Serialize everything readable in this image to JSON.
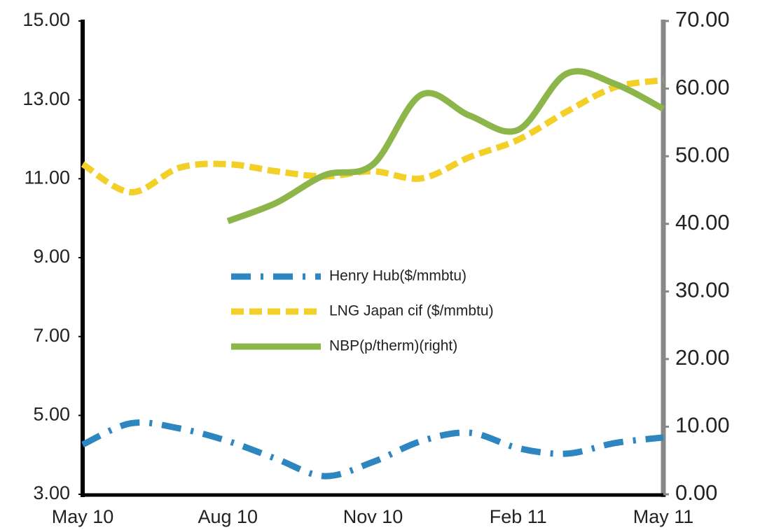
{
  "chart_data": {
    "type": "line",
    "categories": [
      "May 10",
      null,
      null,
      "Aug 10",
      null,
      null,
      "Nov 10",
      null,
      null,
      "Feb 11",
      null,
      null,
      "May 11"
    ],
    "series": [
      {
        "name": "Henry Hub($/mmbtu)",
        "color": "#2e86c1",
        "dash": "dashdot",
        "values": [
          4.26,
          4.8,
          4.67,
          4.35,
          3.9,
          3.46,
          3.82,
          4.35,
          4.56,
          4.17,
          4.03,
          4.3,
          4.44
        ]
      },
      {
        "name": "LNG Japan cif ($/mmbtu)",
        "color": "#f2d027",
        "dash": "dashed",
        "values": [
          11.37,
          10.66,
          11.28,
          11.37,
          11.19,
          11.06,
          11.19,
          11.01,
          11.55,
          11.99,
          12.7,
          13.32,
          13.5
        ]
      },
      {
        "name": "NBP(p/therm)(right)",
        "color": "#8cb54a",
        "dash": "solid",
        "axis": "y2",
        "values": [
          null,
          null,
          null,
          40.4,
          43.1,
          47.2,
          48.8,
          59.1,
          56.0,
          53.9,
          62.2,
          60.7,
          57.0
        ]
      }
    ],
    "ylim": [
      3,
      15
    ],
    "yticks": [
      {
        "value": 3,
        "label": "3.00"
      },
      {
        "value": 5,
        "label": "5.00"
      },
      {
        "value": 7,
        "label": "7.00"
      },
      {
        "value": 9,
        "label": "9.00"
      },
      {
        "value": 11,
        "label": "11.00"
      },
      {
        "value": 13,
        "label": "13.00"
      },
      {
        "value": 15,
        "label": "15.00"
      }
    ],
    "y2lim": [
      0,
      70
    ],
    "y2ticks": [
      {
        "value": 0,
        "label": "0.00"
      },
      {
        "value": 10,
        "label": "10.00"
      },
      {
        "value": 20,
        "label": "20.00"
      },
      {
        "value": 30,
        "label": "30.00"
      },
      {
        "value": 40,
        "label": "40.00"
      },
      {
        "value": 50,
        "label": "50.00"
      },
      {
        "value": 60,
        "label": "60.00"
      },
      {
        "value": 70,
        "label": "70.00"
      }
    ]
  }
}
